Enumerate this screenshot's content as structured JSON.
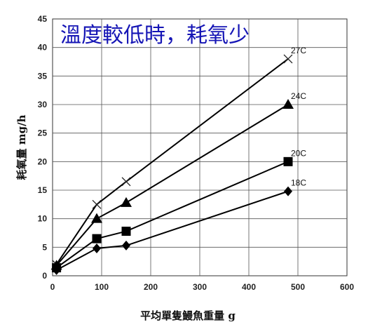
{
  "chart_data": {
    "type": "line",
    "title": "溫度較低時，耗氧少",
    "xlabel": "平均單隻鰻魚重量  g",
    "ylabel": "耗氧量  mg/h",
    "xlim": [
      0,
      600
    ],
    "ylim": [
      0,
      45
    ],
    "xticks": [
      0,
      100,
      200,
      300,
      400,
      500,
      600
    ],
    "yticks": [
      0,
      5,
      10,
      15,
      20,
      25,
      30,
      35,
      40,
      45
    ],
    "grid": true,
    "series": [
      {
        "name": "27C",
        "marker": "x",
        "x": [
          8,
          90,
          150,
          480
        ],
        "y": [
          2,
          12.5,
          16.5,
          38
        ]
      },
      {
        "name": "24C",
        "marker": "triangle",
        "x": [
          8,
          90,
          150,
          480
        ],
        "y": [
          1.8,
          10,
          12.8,
          30
        ]
      },
      {
        "name": "20C",
        "marker": "square",
        "x": [
          8,
          90,
          150,
          480
        ],
        "y": [
          1.4,
          6.5,
          7.8,
          20
        ]
      },
      {
        "name": "18C",
        "marker": "diamond",
        "x": [
          8,
          90,
          150,
          480
        ],
        "y": [
          1,
          4.8,
          5.3,
          14.8
        ]
      }
    ]
  }
}
